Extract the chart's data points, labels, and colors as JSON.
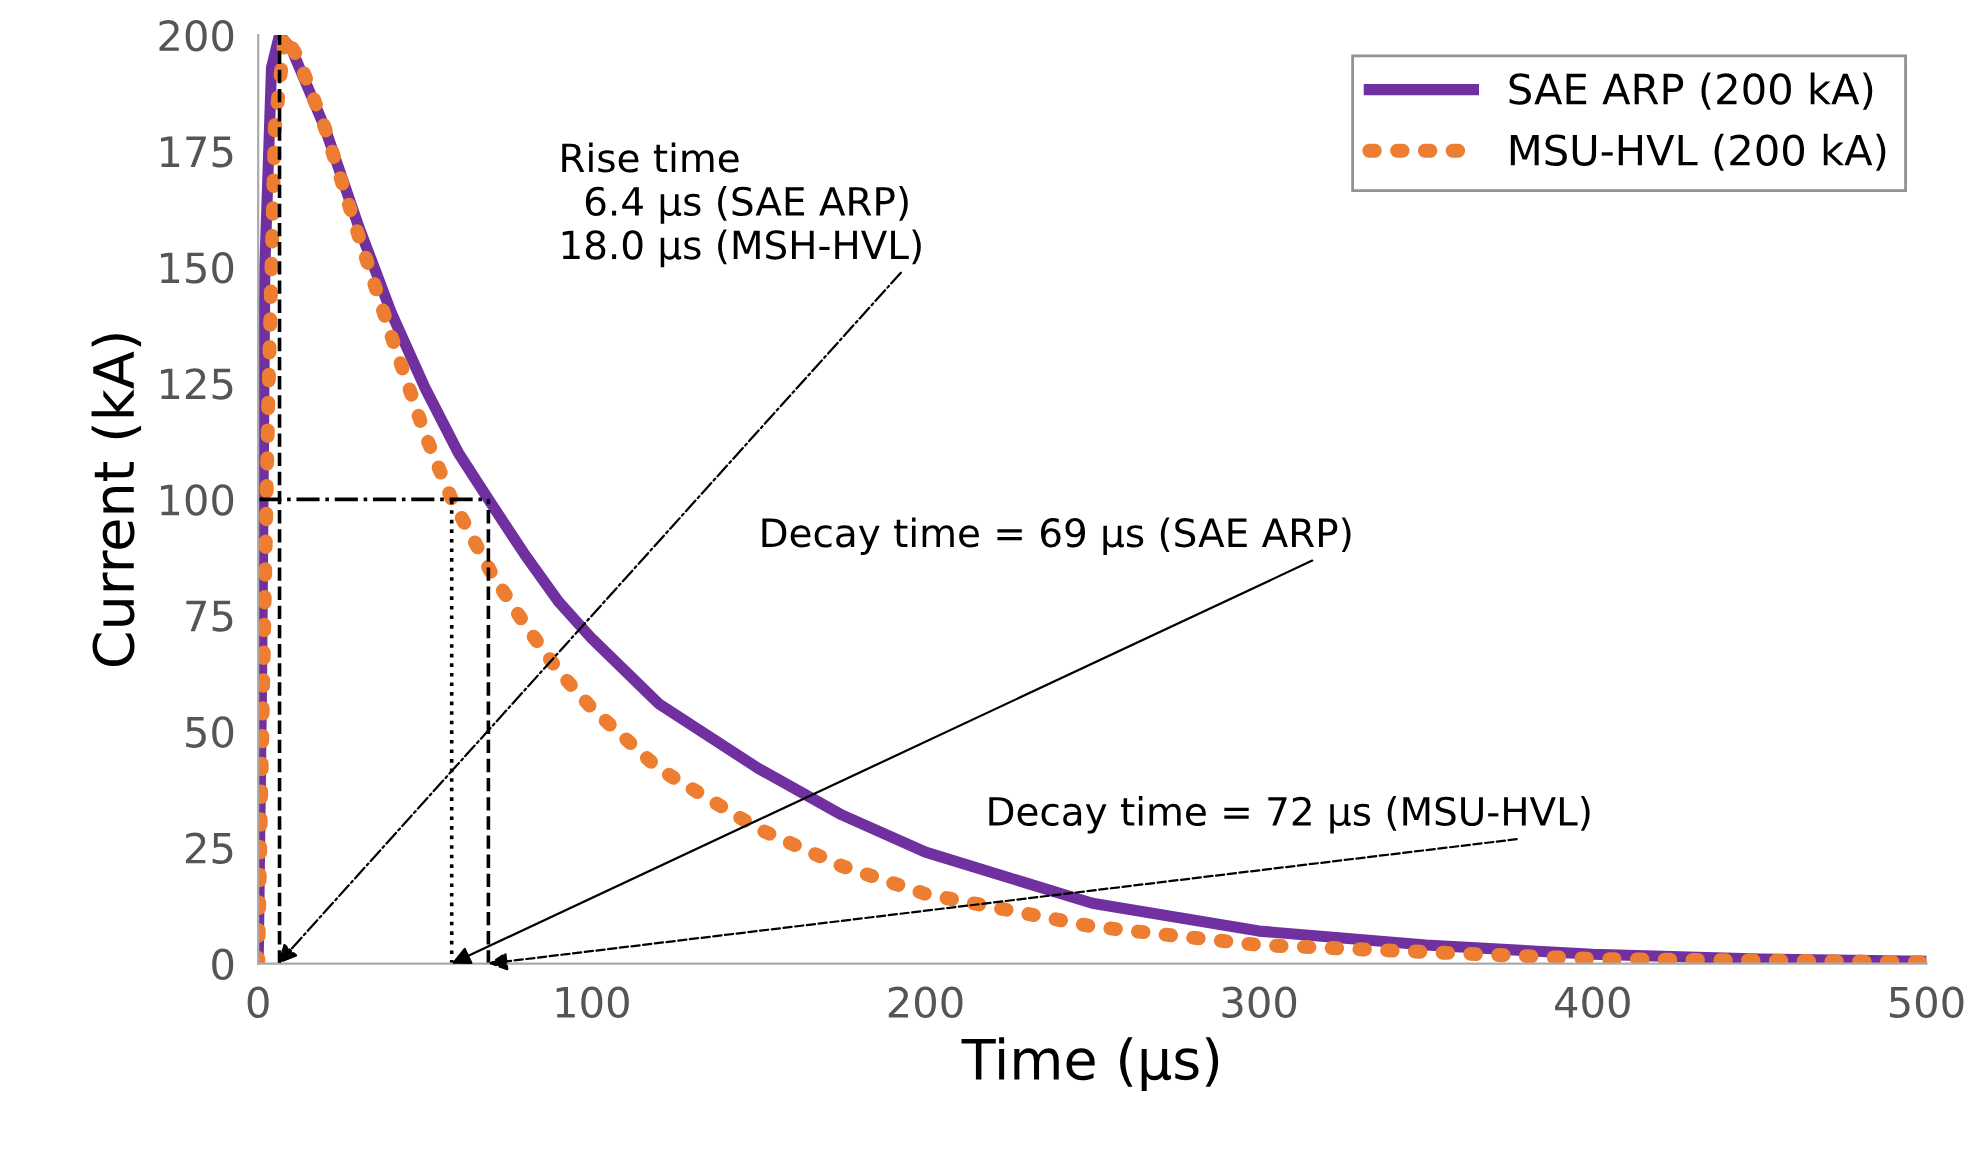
{
  "chart_data": {
    "type": "line",
    "xlabel": "Time (µs)",
    "ylabel": "Current (kA)",
    "xlim": [
      0,
      500
    ],
    "ylim": [
      0,
      200
    ],
    "xticks": [
      0,
      100,
      200,
      300,
      400,
      500
    ],
    "yticks": [
      0,
      25,
      50,
      75,
      100,
      125,
      150,
      175,
      200
    ],
    "grid": false,
    "legend": "top right",
    "series": [
      {
        "name": "SAE ARP (200 kA)",
        "color": "#7030a0",
        "line_style": "solid",
        "x": [
          0,
          1,
          2,
          4,
          6.4,
          10,
          20,
          30,
          40,
          50,
          60,
          69,
          80,
          90,
          100,
          120,
          150,
          175,
          200,
          250,
          300,
          350,
          400,
          450,
          500
        ],
        "values": [
          0,
          60,
          150,
          193,
          200,
          197,
          180,
          159,
          140,
          124,
          110,
          100,
          88,
          78,
          70,
          56,
          42,
          32,
          24,
          13,
          7,
          4,
          2,
          1,
          0.5
        ]
      },
      {
        "name": "MSU-HVL (200 kA)",
        "color": "#ed7d31",
        "line_style": "dotted",
        "x": [
          0,
          1,
          3,
          5,
          8,
          12,
          20,
          30,
          40,
          50,
          58,
          70,
          80,
          90,
          100,
          120,
          150,
          175,
          200,
          250,
          300,
          400,
          500
        ],
        "values": [
          0,
          40,
          120,
          180,
          200,
          195,
          180,
          157,
          135,
          114,
          100,
          84,
          73,
          63,
          55,
          42,
          29,
          21,
          15,
          8,
          4,
          1,
          0.3
        ]
      },
      {
        "color": "#000000",
        "line_style": "dashed",
        "x": [
          6.4,
          6.4
        ],
        "values": [
          0,
          200
        ]
      },
      {
        "color": "#000000",
        "line_style": "dashed",
        "x": [
          69,
          69
        ],
        "values": [
          0,
          100
        ]
      },
      {
        "color": "#000000",
        "line_style": "dotted",
        "x": [
          58,
          58
        ],
        "values": [
          0,
          100
        ]
      },
      {
        "color": "#000000",
        "line_style": "dashdot",
        "x": [
          0,
          69
        ],
        "values": [
          100,
          100
        ]
      }
    ],
    "annotations": [
      {
        "text": "Rise time\n  6.4 µs (SAE ARP)\n18.0 µs (MSH-HVL)",
        "x": 6,
        "y": 0
      },
      {
        "text": "Decay time = 69 µs (SAE ARP)",
        "x": 58,
        "y": 0
      },
      {
        "text": "Decay time = 72 µs (MSU-HVL)",
        "x": 69,
        "y": 0
      }
    ]
  }
}
